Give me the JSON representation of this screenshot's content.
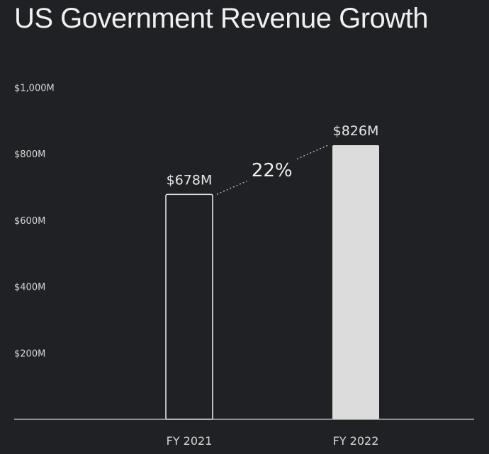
{
  "chart_data": {
    "type": "bar",
    "title": "US Government Revenue Growth",
    "categories": [
      "FY 2021",
      "FY 2022"
    ],
    "values": [
      678,
      826
    ],
    "data_labels": [
      "$678M",
      "$826M"
    ],
    "fills": [
      "outline",
      "solid"
    ],
    "y_ticks": [
      {
        "value": 200,
        "label": "$200M"
      },
      {
        "value": 400,
        "label": "$400M"
      },
      {
        "value": 600,
        "label": "$600M"
      },
      {
        "value": 800,
        "label": "$800M"
      },
      {
        "value": 1000,
        "label": "$1,000M"
      }
    ],
    "ylim": [
      0,
      1000
    ],
    "xlabel": "",
    "ylabel": "",
    "grid": false,
    "annotation": {
      "text": "22%",
      "from": 0,
      "to": 1
    }
  },
  "colors": {
    "background": "#1f2124",
    "bar_solid": "#dcdcdc",
    "bar_outline": "#f0f0f0",
    "axis": "#d0d0d0",
    "text": "#e8e8e8"
  }
}
